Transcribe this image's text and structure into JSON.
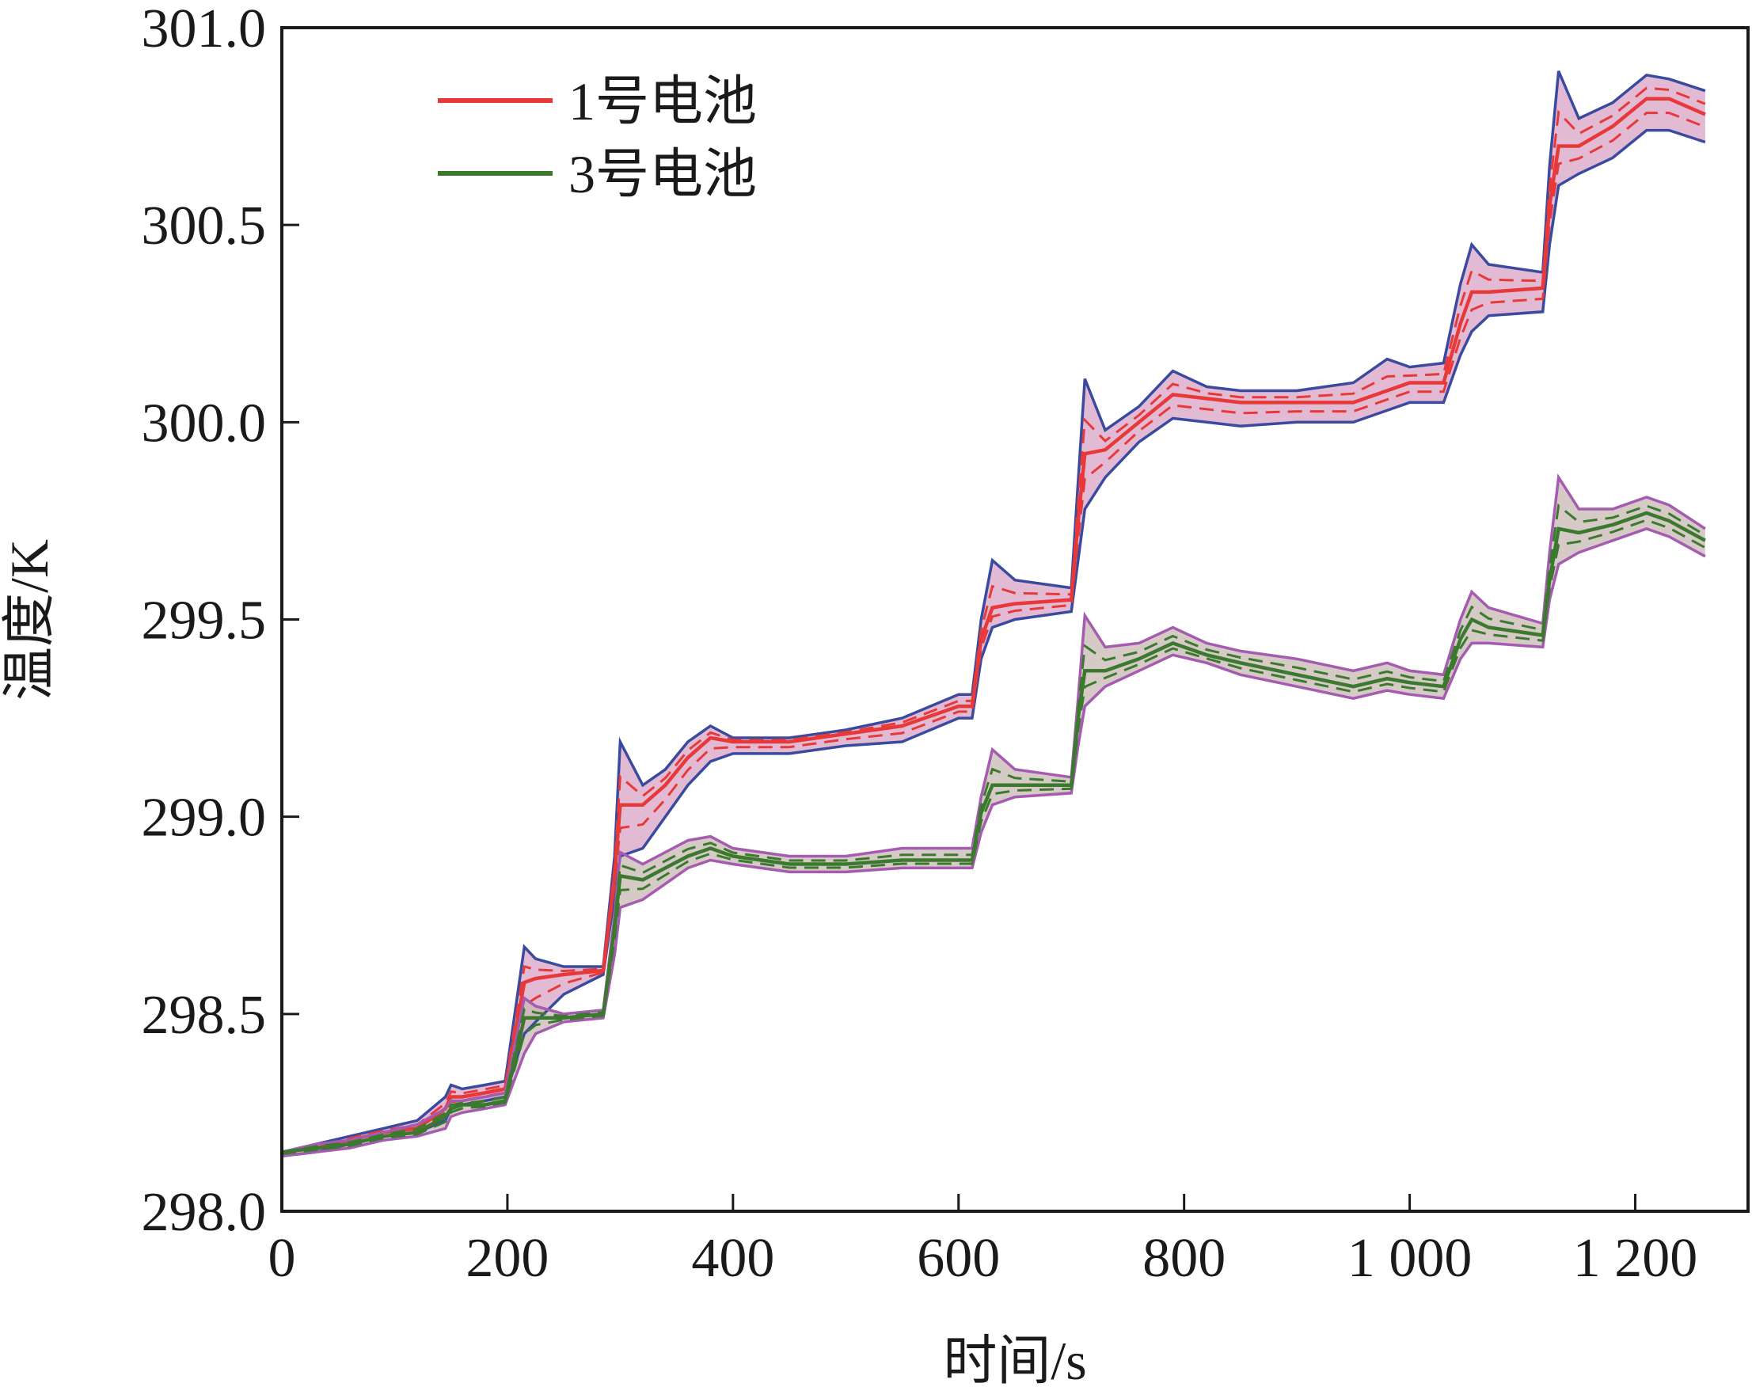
{
  "chart_data": {
    "type": "line",
    "xlabel": "时间/s",
    "ylabel": "温度/K",
    "xlim": [
      0,
      1300
    ],
    "ylim": [
      298.0,
      301.0
    ],
    "x_ticks": [
      0,
      200,
      400,
      600,
      800,
      1000,
      1200
    ],
    "x_tick_labels": [
      "0",
      "200",
      "400",
      "600",
      "800",
      "1 000",
      "1 200"
    ],
    "y_ticks": [
      298.0,
      298.5,
      299.0,
      299.5,
      300.0,
      300.5,
      301.0
    ],
    "y_tick_labels": [
      "298.0",
      "298.5",
      "299.0",
      "299.5",
      "300.0",
      "300.5",
      "301.0"
    ],
    "grid": false,
    "legend_position": "top-left",
    "series": [
      {
        "name": "1号电池",
        "color": "#e8393a",
        "band_fill": "#d9a3c6",
        "band_edge_color": "#3a4a9e",
        "x": [
          0,
          30,
          60,
          90,
          120,
          145,
          150,
          160,
          180,
          198,
          215,
          225,
          250,
          285,
          295,
          300,
          320,
          340,
          360,
          380,
          400,
          450,
          500,
          550,
          600,
          612,
          620,
          630,
          650,
          700,
          706,
          712,
          730,
          760,
          790,
          820,
          850,
          900,
          950,
          980,
          1000,
          1030,
          1045,
          1055,
          1070,
          1118,
          1124,
          1132,
          1150,
          1180,
          1210,
          1230,
          1262
        ],
        "values": [
          298.15,
          298.16,
          298.18,
          298.2,
          298.21,
          298.26,
          298.29,
          298.29,
          298.3,
          298.31,
          298.58,
          298.59,
          298.6,
          298.61,
          298.85,
          299.03,
          299.03,
          299.08,
          299.15,
          299.2,
          299.19,
          299.19,
          299.21,
          299.23,
          299.28,
          299.28,
          299.45,
          299.53,
          299.54,
          299.55,
          299.75,
          299.92,
          299.93,
          300.0,
          300.07,
          300.06,
          300.05,
          300.05,
          300.05,
          300.08,
          300.1,
          300.1,
          300.25,
          300.33,
          300.33,
          300.34,
          300.55,
          300.7,
          300.7,
          300.75,
          300.82,
          300.82,
          300.78
        ],
        "upper": [
          298.15,
          298.17,
          298.19,
          298.21,
          298.23,
          298.29,
          298.32,
          298.31,
          298.32,
          298.33,
          298.67,
          298.64,
          298.62,
          298.62,
          298.9,
          299.19,
          299.08,
          299.12,
          299.19,
          299.23,
          299.2,
          299.2,
          299.22,
          299.25,
          299.31,
          299.31,
          299.5,
          299.65,
          299.6,
          299.58,
          299.85,
          300.11,
          299.98,
          300.04,
          300.13,
          300.09,
          300.08,
          300.08,
          300.1,
          300.16,
          300.14,
          300.15,
          300.35,
          300.45,
          300.4,
          300.38,
          300.65,
          300.89,
          300.77,
          300.81,
          300.88,
          300.87,
          300.84
        ],
        "lower": [
          298.14,
          298.15,
          298.17,
          298.19,
          298.2,
          298.23,
          298.26,
          298.27,
          298.28,
          298.29,
          298.45,
          298.48,
          298.55,
          298.6,
          298.8,
          298.9,
          298.92,
          299.0,
          299.08,
          299.14,
          299.16,
          299.16,
          299.18,
          299.19,
          299.25,
          299.25,
          299.4,
          299.48,
          299.5,
          299.52,
          299.65,
          299.78,
          299.86,
          299.95,
          300.01,
          300.0,
          299.99,
          300.0,
          300.0,
          300.03,
          300.05,
          300.05,
          300.17,
          300.23,
          300.27,
          300.28,
          300.45,
          300.6,
          300.63,
          300.67,
          300.74,
          300.74,
          300.71
        ]
      },
      {
        "name": "3号电池",
        "color": "#3b7a2e",
        "band_fill": "#c8b8b4",
        "band_edge_color": "#a45bb0",
        "x": [
          0,
          30,
          60,
          90,
          120,
          145,
          150,
          160,
          180,
          198,
          215,
          225,
          250,
          285,
          295,
          300,
          320,
          340,
          360,
          380,
          400,
          450,
          500,
          550,
          600,
          612,
          620,
          630,
          650,
          700,
          706,
          712,
          730,
          760,
          790,
          820,
          850,
          900,
          950,
          980,
          1000,
          1030,
          1045,
          1055,
          1070,
          1118,
          1124,
          1132,
          1150,
          1180,
          1210,
          1230,
          1262
        ],
        "values": [
          298.15,
          298.16,
          298.17,
          298.19,
          298.2,
          298.24,
          298.26,
          298.27,
          298.27,
          298.28,
          298.49,
          298.49,
          298.49,
          298.5,
          298.72,
          298.85,
          298.84,
          298.87,
          298.9,
          298.92,
          298.9,
          298.88,
          298.88,
          298.89,
          298.89,
          298.89,
          299.01,
          299.08,
          299.08,
          299.08,
          299.25,
          299.37,
          299.37,
          299.4,
          299.44,
          299.41,
          299.39,
          299.36,
          299.33,
          299.35,
          299.34,
          299.33,
          299.45,
          299.5,
          299.48,
          299.46,
          299.6,
          299.73,
          299.72,
          299.74,
          299.77,
          299.75,
          299.7
        ],
        "upper": [
          298.15,
          298.17,
          298.18,
          298.2,
          298.22,
          298.26,
          298.28,
          298.28,
          298.29,
          298.3,
          298.54,
          298.52,
          298.5,
          298.51,
          298.75,
          298.91,
          298.88,
          298.91,
          298.94,
          298.95,
          298.92,
          298.9,
          298.9,
          298.92,
          298.92,
          298.92,
          299.05,
          299.17,
          299.12,
          299.1,
          299.3,
          299.51,
          299.43,
          299.44,
          299.48,
          299.44,
          299.42,
          299.4,
          299.37,
          299.39,
          299.37,
          299.36,
          299.5,
          299.57,
          299.53,
          299.49,
          299.67,
          299.86,
          299.78,
          299.78,
          299.81,
          299.79,
          299.73
        ],
        "lower": [
          298.14,
          298.15,
          298.16,
          298.18,
          298.19,
          298.21,
          298.24,
          298.25,
          298.26,
          298.27,
          298.4,
          298.45,
          298.48,
          298.49,
          298.65,
          298.77,
          298.79,
          298.83,
          298.87,
          298.89,
          298.88,
          298.86,
          298.86,
          298.87,
          298.87,
          298.87,
          298.96,
          299.03,
          299.05,
          299.06,
          299.18,
          299.28,
          299.33,
          299.37,
          299.41,
          299.39,
          299.36,
          299.33,
          299.3,
          299.32,
          299.31,
          299.3,
          299.4,
          299.44,
          299.44,
          299.43,
          299.55,
          299.64,
          299.67,
          299.7,
          299.73,
          299.71,
          299.66
        ]
      }
    ]
  }
}
